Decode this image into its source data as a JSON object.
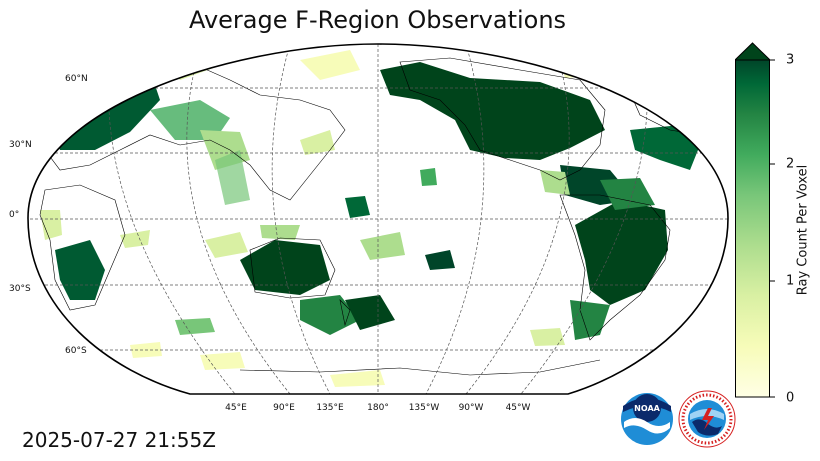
{
  "title": "Average F-Region Observations",
  "timestamp": "2025-07-27 21:55Z",
  "latitude_labels": [
    "60°N",
    "30°N",
    "0°",
    "30°S",
    "60°S"
  ],
  "longitude_labels": [
    "45°E",
    "90°E",
    "135°E",
    "180°",
    "135°W",
    "90°W",
    "45°W"
  ],
  "colorbar": {
    "label": "Ray Count Per Voxel",
    "ticks": [
      "0",
      "1",
      "2",
      "3"
    ],
    "min": 0,
    "max": 3,
    "extend": "max",
    "colors": [
      "#ffffe5",
      "#f7fcb9",
      "#d9f0a3",
      "#addd8e",
      "#78c679",
      "#41ab5d",
      "#238443",
      "#006837",
      "#004529"
    ]
  },
  "logos": [
    "noaa-logo",
    "national-weather-service-logo"
  ],
  "chart_data": {
    "type": "heatmap",
    "title": "Average F-Region Observations",
    "projection": "Robinson, centered on 180°",
    "colorbar_label": "Ray Count Per Voxel",
    "value_range": [
      0,
      3
    ],
    "high_density_regions": [
      "North America",
      "South America",
      "Europe",
      "Australia",
      "Southern Africa"
    ]
  }
}
